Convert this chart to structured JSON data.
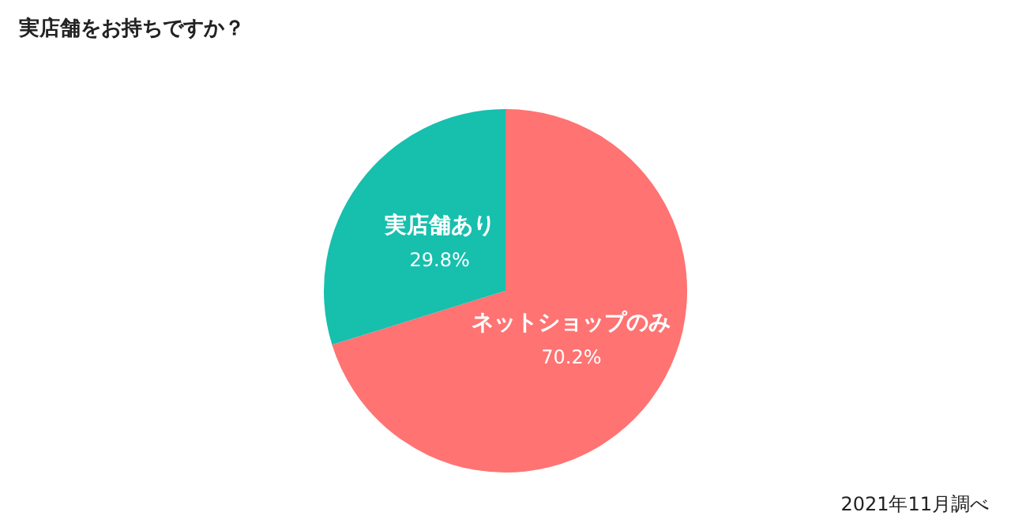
{
  "chart_data": {
    "type": "pie",
    "title": "実店舗をお持ちですか？",
    "categories": [
      "ネットショップのみ",
      "実店舗あり"
    ],
    "values": [
      70.2,
      29.8
    ],
    "colors": [
      "#ff7373",
      "#17bfad"
    ],
    "value_labels": [
      "70.2%",
      "29.8%"
    ],
    "legend": false,
    "annotations": [
      "2021年11月調べ"
    ]
  }
}
